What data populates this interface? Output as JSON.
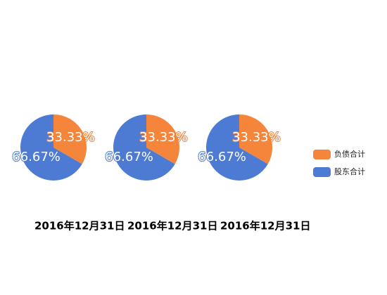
{
  "chart_data": [
    {
      "type": "pie",
      "title": "2016年12月31日",
      "categories": [
        "负债合计",
        "股东合计"
      ],
      "values": [
        33.33,
        66.67
      ],
      "value_labels": [
        "33.33%",
        "66.67%"
      ],
      "colors": [
        "#f5853b",
        "#4d7bd3"
      ]
    },
    {
      "type": "pie",
      "title": "2016年12月31日",
      "categories": [
        "负债合计",
        "股东合计"
      ],
      "values": [
        33.33,
        66.67
      ],
      "value_labels": [
        "33.33%",
        "66.67%"
      ],
      "colors": [
        "#f5853b",
        "#4d7bd3"
      ]
    },
    {
      "type": "pie",
      "title": "2016年12月31日",
      "categories": [
        "负债合计",
        "股东合计"
      ],
      "values": [
        33.33,
        66.67
      ],
      "value_labels": [
        "33.33%",
        "66.67%"
      ],
      "colors": [
        "#f5853b",
        "#4d7bd3"
      ]
    }
  ]
}
